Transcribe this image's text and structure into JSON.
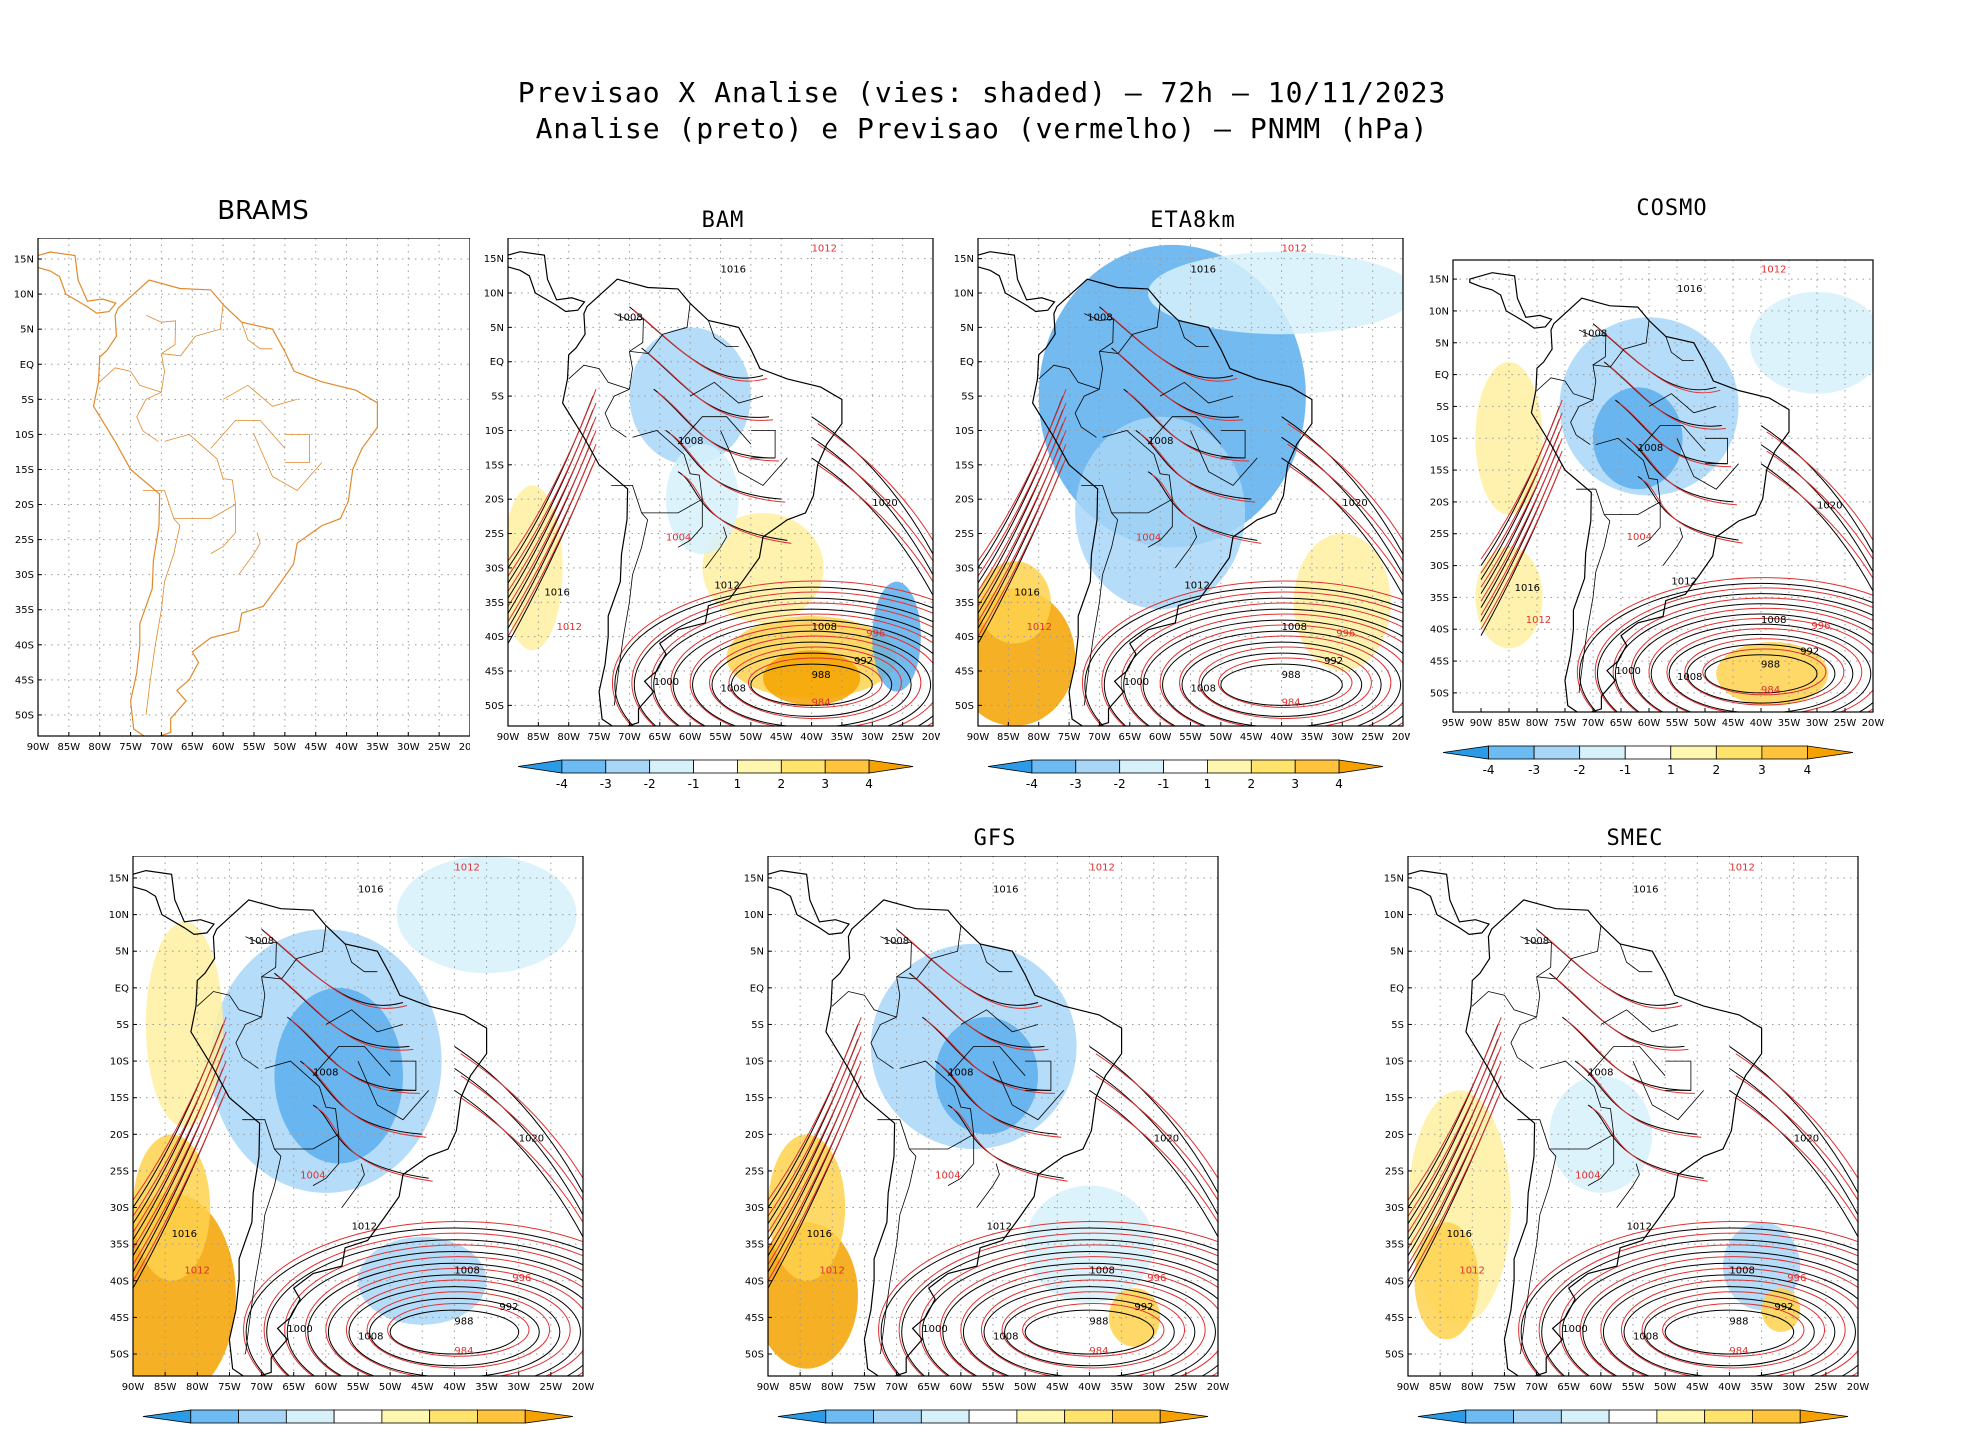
{
  "figure": {
    "title_line1": "Previsao X Analise (vies: shaded) – 72h – 10/11/2023",
    "title_line2": "Analise (preto) e Previsao (vermelho) – PNMM (hPa)"
  },
  "panels": [
    {
      "name": "BRAMS",
      "shaded": false,
      "colorbar": false,
      "lon_first": "90W"
    },
    {
      "name": "BAM",
      "shaded": true,
      "colorbar": true,
      "lon_first": "90W"
    },
    {
      "name": "ETA8km",
      "shaded": true,
      "colorbar": true,
      "lon_first": "90W"
    },
    {
      "name": "COSMO",
      "shaded": true,
      "colorbar": true,
      "lon_first": "95W"
    },
    {
      "name": "",
      "shaded": true,
      "colorbar": true,
      "lon_first": "90W"
    },
    {
      "name": "GFS",
      "shaded": true,
      "colorbar": true,
      "lon_first": "90W"
    },
    {
      "name": "SMEC",
      "shaded": true,
      "colorbar": true,
      "lon_first": "90W"
    }
  ],
  "axes": {
    "lat_labels": [
      "15N",
      "10N",
      "5N",
      "EQ",
      "5S",
      "10S",
      "15S",
      "20S",
      "25S",
      "30S",
      "35S",
      "40S",
      "45S",
      "50S"
    ],
    "lon_labels": [
      "85W",
      "80W",
      "75W",
      "70W",
      "65W",
      "60W",
      "55W",
      "50W",
      "45W",
      "40W",
      "35W",
      "30W",
      "25W",
      "20W"
    ]
  },
  "colorbar": {
    "labels": [
      "-4",
      "-3",
      "-2",
      "-1",
      "1",
      "2",
      "3",
      "4"
    ],
    "colors": [
      "#2b9be8",
      "#6cbbf2",
      "#a8d6f7",
      "#d7f1fb",
      "#ffffff",
      "#fff6b0",
      "#ffe36a",
      "#ffc33c",
      "#f5a200"
    ]
  },
  "isobar_labels": [
    "1016",
    "1012",
    "1008",
    "1004",
    "1000",
    "996",
    "992",
    "988",
    "984",
    "1020"
  ],
  "colors": {
    "coast": "#e08a2c",
    "analysis": "#000000",
    "forecast": "#e03030",
    "grid": "#9a9a9a"
  }
}
